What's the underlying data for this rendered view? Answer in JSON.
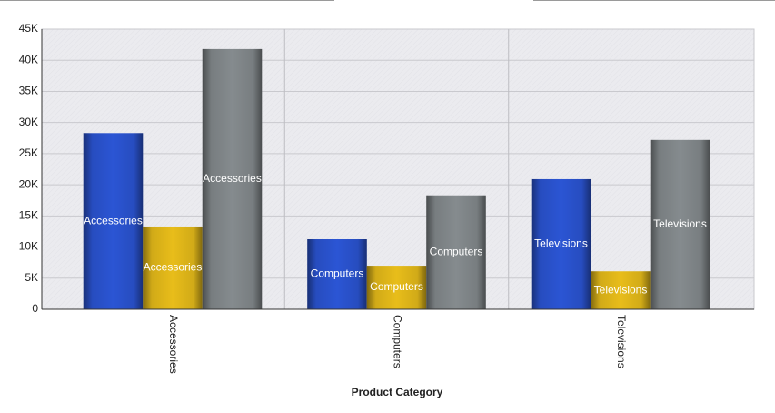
{
  "chart_data": {
    "type": "bar",
    "x_label": "Product Category",
    "categories": [
      "Accessories",
      "Computers",
      "Televisions"
    ],
    "series": [
      {
        "color": "#2b55d4",
        "values": [
          28300,
          11250,
          20900
        ]
      },
      {
        "color": "#e8bd1a",
        "values": [
          13300,
          7000,
          6100
        ]
      },
      {
        "color": "#858b8e",
        "values": [
          41800,
          18300,
          27200
        ]
      }
    ],
    "ylim": [
      0,
      45000
    ],
    "yticks": [
      0,
      {
        "value": 5000,
        "label": "5K"
      },
      {
        "value": 10000,
        "label": "10K"
      },
      {
        "value": 15000,
        "label": "15K"
      },
      {
        "value": 20000,
        "label": "20K"
      },
      {
        "value": 25000,
        "label": "25K"
      },
      {
        "value": 30000,
        "label": "30K"
      },
      {
        "value": 35000,
        "label": "35K"
      },
      {
        "value": 40000,
        "label": "40K"
      },
      {
        "value": 45000,
        "label": "45K"
      }
    ],
    "grid": true
  }
}
